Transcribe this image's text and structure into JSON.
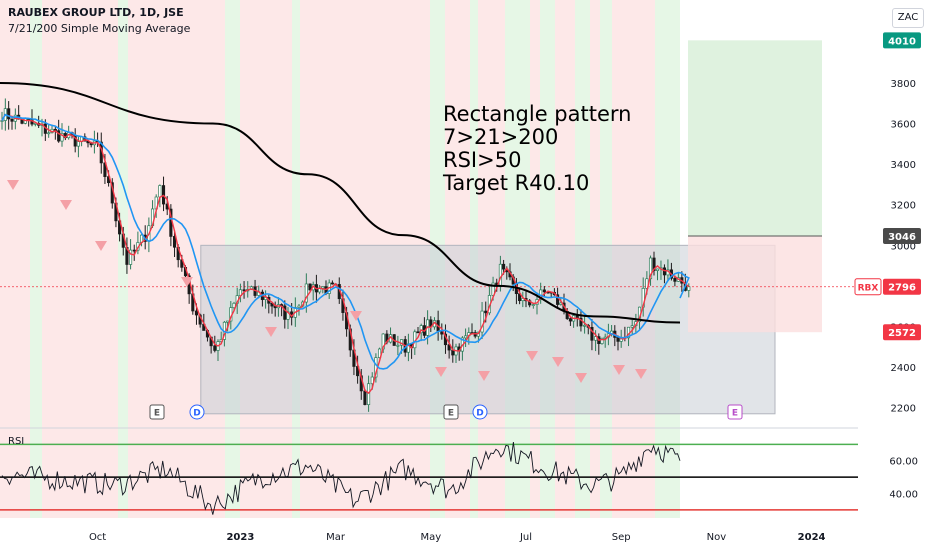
{
  "header": {
    "title": "RAUBEX GROUP LTD, 1D, JSE",
    "subtitle": "7/21/200 Simple Moving Average",
    "currency": "ZAC"
  },
  "annotation": {
    "lines": [
      "Rectangle pattern",
      "7>21>200",
      "RSI>50",
      "Target R40.10"
    ]
  },
  "rsi_label": "RSI",
  "markers": [
    {
      "letter": "E",
      "kind": "earnings",
      "month": "Nov-2022"
    },
    {
      "letter": "D",
      "kind": "dividend",
      "month": "Dec-2022"
    },
    {
      "letter": "E",
      "kind": "earnings",
      "month": "May-2023"
    },
    {
      "letter": "D",
      "kind": "dividend",
      "month": "May-2023"
    },
    {
      "letter": "E",
      "kind": "earnings",
      "month": "Nov-2023"
    }
  ],
  "price_tags": [
    {
      "label": "4010",
      "value": 4010,
      "color": "#089981"
    },
    {
      "label": "3046",
      "value": 3046,
      "color": "#4a4a4a"
    },
    {
      "label": "2796",
      "value": 2796,
      "color": "#f23645",
      "prefix": "RBX"
    },
    {
      "label": "2572",
      "value": 2572,
      "color": "#f23645"
    }
  ],
  "colors": {
    "sma7": "#f23645",
    "sma21": "#2196f3",
    "sma200": "#000000",
    "bear_bg": "#fde8e8",
    "bull_bg": "#e6f7e6",
    "rectangle": "#c9cdd6",
    "target_zone": "#dff2df",
    "stop_zone": "#fbdede",
    "rsi_upper": "#4caf50",
    "rsi_lower": "#e53935"
  },
  "chart_data": [
    {
      "type": "candlestick",
      "title": "RAUBEX GROUP LTD, 1D, JSE",
      "x_ticks": [
        "Oct",
        "2023",
        "Mar",
        "May",
        "Jul",
        "Sep",
        "Nov",
        "2024"
      ],
      "y_ticks": [
        2200,
        2400,
        2600,
        2800,
        3000,
        3200,
        3400,
        3600,
        3800
      ],
      "ylim": [
        2100,
        4120
      ],
      "price_path": [
        {
          "x": "Sep-2022",
          "y": 3650
        },
        {
          "x": "Sep-2022",
          "y": 3520
        },
        {
          "x": "Oct-2022",
          "y": 3480
        },
        {
          "x": "Oct-2022",
          "y": 3220
        },
        {
          "x": "Oct-2022",
          "y": 2920
        },
        {
          "x": "Nov-2022",
          "y": 3050
        },
        {
          "x": "Nov-2022",
          "y": 3300
        },
        {
          "x": "Nov-2022",
          "y": 3000
        },
        {
          "x": "Dec-2022",
          "y": 2700
        },
        {
          "x": "Dec-2022",
          "y": 2480
        },
        {
          "x": "Jan-2023",
          "y": 2780
        },
        {
          "x": "Jan-2023",
          "y": 2750
        },
        {
          "x": "Feb-2023",
          "y": 2650
        },
        {
          "x": "Feb-2023",
          "y": 2800
        },
        {
          "x": "Mar-2023",
          "y": 2780
        },
        {
          "x": "Mar-2023",
          "y": 2500
        },
        {
          "x": "Mar-2023",
          "y": 2250
        },
        {
          "x": "Apr-2023",
          "y": 2550
        },
        {
          "x": "Apr-2023",
          "y": 2500
        },
        {
          "x": "May-2023",
          "y": 2620
        },
        {
          "x": "May-2023",
          "y": 2480
        },
        {
          "x": "Jun-2023",
          "y": 2600
        },
        {
          "x": "Jun-2023",
          "y": 2880
        },
        {
          "x": "Jul-2023",
          "y": 2700
        },
        {
          "x": "Jul-2023",
          "y": 2780
        },
        {
          "x": "Aug-2023",
          "y": 2620
        },
        {
          "x": "Aug-2023",
          "y": 2540
        },
        {
          "x": "Sep-2023",
          "y": 2550
        },
        {
          "x": "Sep-2023",
          "y": 2620
        },
        {
          "x": "Sep-2023",
          "y": 2920
        },
        {
          "x": "Oct-2023",
          "y": 2796
        }
      ],
      "sma200": [
        {
          "x": "Sep-2022",
          "y": 3800
        },
        {
          "x": "Dec-2022",
          "y": 3600
        },
        {
          "x": "Feb-2023",
          "y": 3350
        },
        {
          "x": "Apr-2023",
          "y": 3050
        },
        {
          "x": "Jun-2023",
          "y": 2800
        },
        {
          "x": "Aug-2023",
          "y": 2650
        },
        {
          "x": "Oct-2023",
          "y": 2620
        }
      ],
      "rectangle": {
        "from": "Dec-2022",
        "to": "Nov-2023",
        "top": 3000,
        "bottom": 2170
      },
      "target_zone": {
        "from": "Oct-2023",
        "to": "Dec-2023",
        "top": 4010,
        "bottom": 3046
      },
      "stop_zone": {
        "from": "Oct-2023",
        "to": "Dec-2023",
        "top": 3046,
        "bottom": 2572
      }
    },
    {
      "type": "line",
      "title": "RSI",
      "y_ticks": [
        40,
        60
      ],
      "levels": [
        70,
        50,
        30
      ],
      "ylim": [
        25,
        80
      ],
      "path": [
        {
          "x": "Sep-2022",
          "y": 52
        },
        {
          "x": "Oct-2022",
          "y": 45
        },
        {
          "x": "Nov-2022",
          "y": 55
        },
        {
          "x": "Dec-2022",
          "y": 32
        },
        {
          "x": "Jan-2023",
          "y": 50
        },
        {
          "x": "Feb-2023",
          "y": 57
        },
        {
          "x": "Mar-2023",
          "y": 35
        },
        {
          "x": "Apr-2023",
          "y": 55
        },
        {
          "x": "May-2023",
          "y": 42
        },
        {
          "x": "Jun-2023",
          "y": 70
        },
        {
          "x": "Jul-2023",
          "y": 55
        },
        {
          "x": "Aug-2023",
          "y": 45
        },
        {
          "x": "Sep-2023",
          "y": 50
        },
        {
          "x": "Sep-2023",
          "y": 70
        },
        {
          "x": "Oct-2023",
          "y": 60
        }
      ]
    }
  ]
}
